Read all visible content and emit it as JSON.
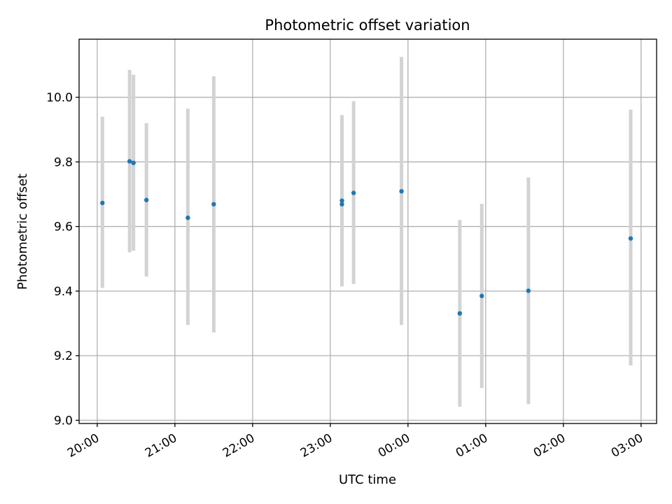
{
  "chart_data": {
    "type": "scatter",
    "title": "Photometric offset variation",
    "xlabel": "UTC time",
    "ylabel": "Photometric offset",
    "x_ticks": [
      {
        "label": "20:00",
        "hour": 20
      },
      {
        "label": "21:00",
        "hour": 21
      },
      {
        "label": "22:00",
        "hour": 22
      },
      {
        "label": "23:00",
        "hour": 23
      },
      {
        "label": "00:00",
        "hour": 24
      },
      {
        "label": "01:00",
        "hour": 25
      },
      {
        "label": "02:00",
        "hour": 26
      },
      {
        "label": "03:00",
        "hour": 27
      }
    ],
    "y_ticks": [
      9.0,
      9.2,
      9.4,
      9.6,
      9.8,
      10.0
    ],
    "xlim": [
      "19:46",
      "03:12"
    ],
    "ylim": [
      8.99,
      10.18
    ],
    "grid": true,
    "marker_color": "#1f77b4",
    "errorbar_color": "#d3d3d3",
    "points": [
      {
        "time": "20:04",
        "y": 9.673,
        "ylow": 9.41,
        "yhigh": 9.94
      },
      {
        "time": "20:25",
        "y": 9.802,
        "ylow": 9.52,
        "yhigh": 10.085
      },
      {
        "time": "20:28",
        "y": 9.797,
        "ylow": 9.525,
        "yhigh": 10.07
      },
      {
        "time": "20:38",
        "y": 9.682,
        "ylow": 9.445,
        "yhigh": 9.92
      },
      {
        "time": "21:10",
        "y": 9.627,
        "ylow": 9.295,
        "yhigh": 9.965
      },
      {
        "time": "21:30",
        "y": 9.669,
        "ylow": 9.272,
        "yhigh": 10.065
      },
      {
        "time": "23:09",
        "y": 9.68,
        "ylow": 9.415,
        "yhigh": 9.945
      },
      {
        "time": "23:09",
        "y": 9.669,
        "ylow": 9.415,
        "yhigh": 9.925
      },
      {
        "time": "23:18",
        "y": 9.704,
        "ylow": 9.422,
        "yhigh": 9.988
      },
      {
        "time": "23:55",
        "y": 9.709,
        "ylow": 9.295,
        "yhigh": 10.125
      },
      {
        "time": "00:40",
        "y": 9.331,
        "ylow": 9.042,
        "yhigh": 9.62
      },
      {
        "time": "00:57",
        "y": 9.385,
        "ylow": 9.1,
        "yhigh": 9.67
      },
      {
        "time": "01:33",
        "y": 9.401,
        "ylow": 9.05,
        "yhigh": 9.752
      },
      {
        "time": "02:52",
        "y": 9.563,
        "ylow": 9.17,
        "yhigh": 9.962
      }
    ]
  }
}
